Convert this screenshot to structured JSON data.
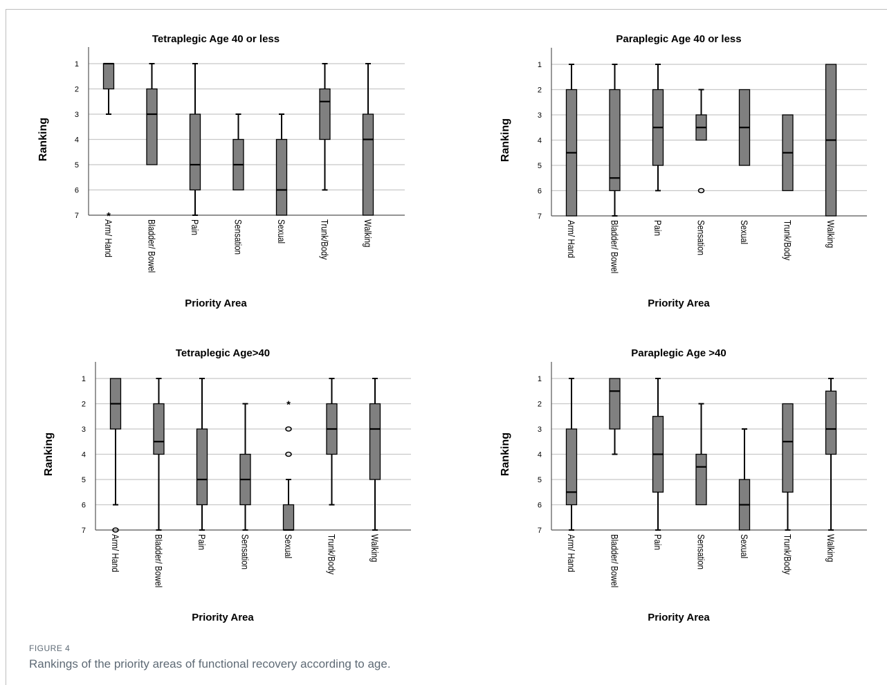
{
  "figure": {
    "label": "FIGURE 4",
    "caption": "Rankings of the priority areas of functional recovery according to age."
  },
  "colors": {
    "box_fill": "#808080",
    "grid": "#c8c8c8",
    "axis": "#555555",
    "text": "#000000"
  },
  "chart_data": [
    {
      "type": "box",
      "title": "Tetraplegic Age 40 or less",
      "xlabel": "Priority Area",
      "ylabel": "Ranking",
      "ylim": [
        1,
        7
      ],
      "y_inverted": true,
      "grid": true,
      "categories": [
        "Arm/ Hand",
        "Bladder/ Bowel",
        "Pain",
        "Sensation",
        "Sexual",
        "Trunk/Body",
        "Walking"
      ],
      "boxes": [
        {
          "whislo": 1,
          "q1": 1,
          "med": 1,
          "q3": 2,
          "whishi": 3,
          "fliers": [
            {
              "value": 7,
              "symbol": "*"
            }
          ]
        },
        {
          "whislo": 1,
          "q1": 2,
          "med": 3,
          "q3": 5,
          "whishi": 5,
          "fliers": []
        },
        {
          "whislo": 1,
          "q1": 3,
          "med": 5,
          "q3": 6,
          "whishi": 7,
          "fliers": []
        },
        {
          "whislo": 3,
          "q1": 4,
          "med": 5,
          "q3": 6,
          "whishi": 6,
          "fliers": []
        },
        {
          "whislo": 3,
          "q1": 4,
          "med": 6,
          "q3": 7,
          "whishi": 7,
          "fliers": []
        },
        {
          "whislo": 1,
          "q1": 2,
          "med": 2.5,
          "q3": 4,
          "whishi": 6,
          "fliers": []
        },
        {
          "whislo": 1,
          "q1": 3,
          "med": 4,
          "q3": 7,
          "whishi": 7,
          "fliers": []
        }
      ]
    },
    {
      "type": "box",
      "title": "Paraplegic Age 40 or less",
      "xlabel": "Priority Area",
      "ylabel": "Ranking",
      "ylim": [
        1,
        7
      ],
      "y_inverted": true,
      "grid": true,
      "categories": [
        "Arm/ Hand",
        "Bladder/ Bowel",
        "Pain",
        "Sensation",
        "Sexual",
        "Trunk/Body",
        "Walking"
      ],
      "boxes": [
        {
          "whislo": 1,
          "q1": 2,
          "med": 4.5,
          "q3": 7,
          "whishi": 7,
          "fliers": []
        },
        {
          "whislo": 1,
          "q1": 2,
          "med": 5.5,
          "q3": 6,
          "whishi": 7,
          "fliers": []
        },
        {
          "whislo": 1,
          "q1": 2,
          "med": 3.5,
          "q3": 5,
          "whishi": 6,
          "fliers": []
        },
        {
          "whislo": 2,
          "q1": 3,
          "med": 3.5,
          "q3": 4,
          "whishi": 4,
          "fliers": [
            {
              "value": 6,
              "symbol": "o"
            }
          ]
        },
        {
          "whislo": 2,
          "q1": 2,
          "med": 3.5,
          "q3": 5,
          "whishi": 5,
          "fliers": []
        },
        {
          "whislo": 3,
          "q1": 3,
          "med": 4.5,
          "q3": 6,
          "whishi": 6,
          "fliers": []
        },
        {
          "whislo": 1,
          "q1": 1,
          "med": 4,
          "q3": 7,
          "whishi": 7,
          "fliers": []
        }
      ]
    },
    {
      "type": "box",
      "title": "Tetraplegic Age>40",
      "xlabel": "Priority Area",
      "ylabel": "Ranking",
      "ylim": [
        1,
        7
      ],
      "y_inverted": true,
      "grid": true,
      "categories": [
        "Arm/ Hand",
        "Bladder/ Bowel",
        "Pain",
        "Sensation",
        "Sexual",
        "Trunk/Body",
        "Walking"
      ],
      "boxes": [
        {
          "whislo": 1,
          "q1": 1,
          "med": 2,
          "q3": 3,
          "whishi": 6,
          "fliers": [
            {
              "value": 7,
              "symbol": "o"
            }
          ]
        },
        {
          "whislo": 1,
          "q1": 2,
          "med": 3.5,
          "q3": 4,
          "whishi": 7,
          "fliers": []
        },
        {
          "whislo": 1,
          "q1": 3,
          "med": 5,
          "q3": 6,
          "whishi": 7,
          "fliers": []
        },
        {
          "whislo": 2,
          "q1": 4,
          "med": 5,
          "q3": 6,
          "whishi": 7,
          "fliers": []
        },
        {
          "whislo": 5,
          "q1": 6,
          "med": 7,
          "q3": 7,
          "whishi": 7,
          "fliers": [
            {
              "value": 2,
              "symbol": "*"
            },
            {
              "value": 3,
              "symbol": "o"
            },
            {
              "value": 4,
              "symbol": "o"
            }
          ]
        },
        {
          "whislo": 1,
          "q1": 2,
          "med": 3,
          "q3": 4,
          "whishi": 6,
          "fliers": []
        },
        {
          "whislo": 1,
          "q1": 2,
          "med": 3,
          "q3": 5,
          "whishi": 7,
          "fliers": []
        }
      ]
    },
    {
      "type": "box",
      "title": "Paraplegic Age >40",
      "xlabel": "Priority Area",
      "ylabel": "Ranking",
      "ylim": [
        1,
        7
      ],
      "y_inverted": true,
      "grid": true,
      "categories": [
        "Arm/ Hand",
        "Bladder/ Bowel",
        "Pain",
        "Sensation",
        "Sexual",
        "Trunk/Body",
        "Walking"
      ],
      "boxes": [
        {
          "whislo": 1,
          "q1": 3,
          "med": 5.5,
          "q3": 6,
          "whishi": 7,
          "fliers": []
        },
        {
          "whislo": 1,
          "q1": 1,
          "med": 1.5,
          "q3": 3,
          "whishi": 4,
          "fliers": []
        },
        {
          "whislo": 1,
          "q1": 2.5,
          "med": 4,
          "q3": 5.5,
          "whishi": 7,
          "fliers": []
        },
        {
          "whislo": 2,
          "q1": 4,
          "med": 4.5,
          "q3": 6,
          "whishi": 6,
          "fliers": []
        },
        {
          "whislo": 3,
          "q1": 5,
          "med": 6,
          "q3": 7,
          "whishi": 7,
          "fliers": []
        },
        {
          "whislo": 2,
          "q1": 2,
          "med": 3.5,
          "q3": 5.5,
          "whishi": 7,
          "fliers": []
        },
        {
          "whislo": 1,
          "q1": 1.5,
          "med": 3,
          "q3": 4,
          "whishi": 7,
          "fliers": []
        }
      ]
    }
  ]
}
